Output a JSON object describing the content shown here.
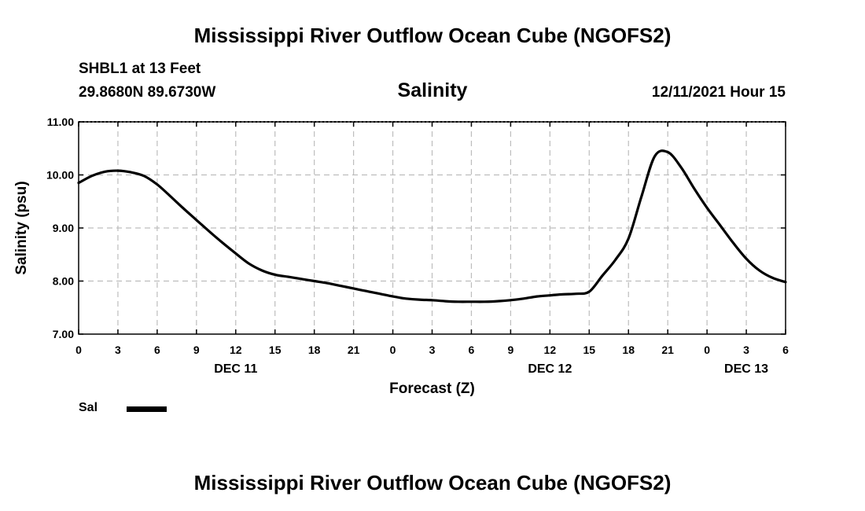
{
  "page": {
    "title_top": "Mississippi River Outflow Ocean Cube (NGOFS2)",
    "title_bottom": "Mississippi River Outflow Ocean Cube (NGOFS2)",
    "station": "SHBL1 at 13 Feet",
    "coordinates": "29.8680N  89.6730W",
    "datetime": "12/11/2021 Hour 15"
  },
  "chart_data": {
    "type": "line",
    "title": "Salinity",
    "xlabel": "Forecast (Z)",
    "ylabel": "Salinity (psu)",
    "xlim": [
      0,
      54
    ],
    "ylim": [
      7.0,
      11.0
    ],
    "y_ticks": [
      "7.00",
      "8.00",
      "9.00",
      "10.00",
      "11.00"
    ],
    "y_tick_values": [
      7,
      8,
      9,
      10,
      11
    ],
    "x_ticks": [
      "0",
      "3",
      "6",
      "9",
      "12",
      "15",
      "18",
      "21",
      "0",
      "3",
      "6",
      "9",
      "12",
      "15",
      "18",
      "21",
      "0",
      "3",
      "6"
    ],
    "x_tick_values": [
      0,
      3,
      6,
      9,
      12,
      15,
      18,
      21,
      24,
      27,
      30,
      33,
      36,
      39,
      42,
      45,
      48,
      51,
      54
    ],
    "date_labels": [
      {
        "label": "DEC 11",
        "hour": 12
      },
      {
        "label": "DEC 12",
        "hour": 36
      },
      {
        "label": "DEC 13",
        "hour": 51
      }
    ],
    "grid": true,
    "legend": [
      {
        "name": "Sal",
        "color": "#000000"
      }
    ],
    "series": [
      {
        "name": "Sal",
        "color": "#000000",
        "x": [
          0,
          1,
          2,
          3,
          4,
          5,
          6,
          7,
          8,
          9,
          10,
          11,
          12,
          13,
          14,
          15,
          16,
          17,
          18,
          19,
          20,
          21,
          22,
          23,
          24,
          25,
          26,
          27,
          28,
          29,
          30,
          31,
          32,
          33,
          34,
          35,
          36,
          37,
          38,
          39,
          40,
          41,
          42,
          43,
          44,
          45,
          46,
          47,
          48,
          49,
          50,
          51,
          52,
          53,
          54
        ],
        "values": [
          9.85,
          9.98,
          10.06,
          10.08,
          10.05,
          9.98,
          9.82,
          9.6,
          9.37,
          9.15,
          8.93,
          8.72,
          8.52,
          8.33,
          8.2,
          8.12,
          8.08,
          8.04,
          8.0,
          7.96,
          7.91,
          7.86,
          7.81,
          7.76,
          7.71,
          7.67,
          7.65,
          7.64,
          7.62,
          7.61,
          7.61,
          7.61,
          7.62,
          7.64,
          7.67,
          7.71,
          7.73,
          7.75,
          7.76,
          7.8,
          8.1,
          8.4,
          8.8,
          9.6,
          10.35,
          10.43,
          10.15,
          9.75,
          9.38,
          9.05,
          8.72,
          8.42,
          8.2,
          8.06,
          7.98
        ]
      }
    ]
  }
}
